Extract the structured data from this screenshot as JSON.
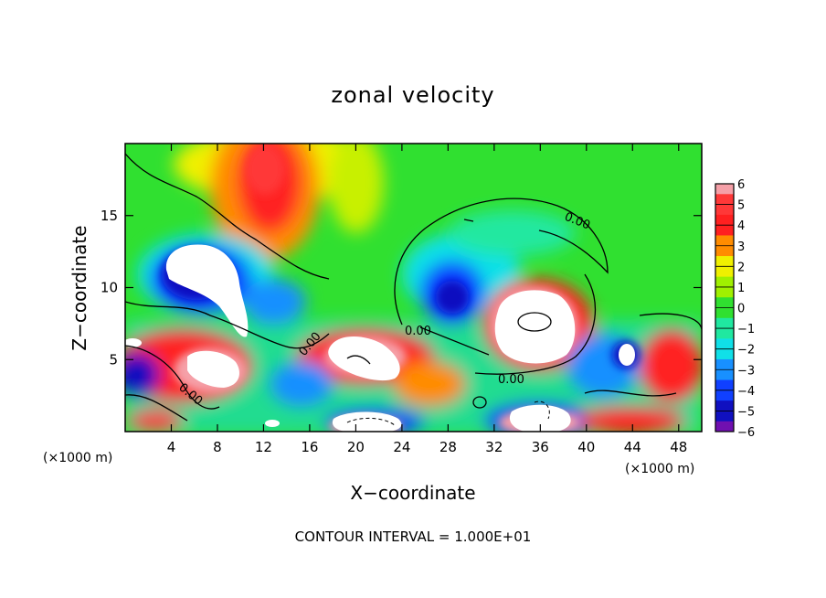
{
  "chart_data": {
    "type": "heatmap",
    "title": "zonal velocity",
    "xlabel": "X−coordinate",
    "ylabel": "Z−coordinate",
    "x_unit_left": "(×1000 m)",
    "x_unit_right": "(×1000 m)",
    "footer": "CONTOUR INTERVAL = 1.000E+01",
    "xlim": [
      0,
      50
    ],
    "ylim": [
      0,
      20
    ],
    "x_ticks": [
      4,
      8,
      12,
      16,
      20,
      24,
      28,
      32,
      36,
      40,
      44,
      48
    ],
    "y_ticks": [
      5,
      10,
      15
    ],
    "colorbar": {
      "ticks": [
        6,
        5,
        4,
        3,
        2,
        1,
        0,
        -1,
        -2,
        -3,
        -4,
        -5,
        -6
      ],
      "range": [
        -6,
        6
      ],
      "colors": {
        "6": "#f5a0a8",
        "5": "#ff3838",
        "4": "#ff2020",
        "3": "#ff8c00",
        "2": "#f0f000",
        "1": "#a0f000",
        "0": "#30e030",
        "-1": "#20e8a0",
        "-2": "#10e0e8",
        "-3": "#1890ff",
        "-4": "#1040ff",
        "-5": "#1010c0",
        "-6": "#7010b0"
      }
    },
    "contour_labels": [
      "0.00",
      "0.00",
      "0.00",
      "0.00",
      "0.00"
    ],
    "features": [
      {
        "kind": "max",
        "x": 13,
        "z": 17.5,
        "value": 4.5
      },
      {
        "kind": "max",
        "x": 35,
        "z": 7.5,
        "value": 7
      },
      {
        "kind": "min",
        "x": 7,
        "z": 10.5,
        "value": -7
      },
      {
        "kind": "min",
        "x": 28,
        "z": 9,
        "value": -5
      },
      {
        "kind": "min",
        "x": 1,
        "z": 3.5,
        "value": -6
      },
      {
        "kind": "max",
        "x": 21,
        "z": 5,
        "value": 7
      },
      {
        "kind": "max",
        "x": 6.5,
        "z": 4.5,
        "value": 7
      }
    ]
  }
}
